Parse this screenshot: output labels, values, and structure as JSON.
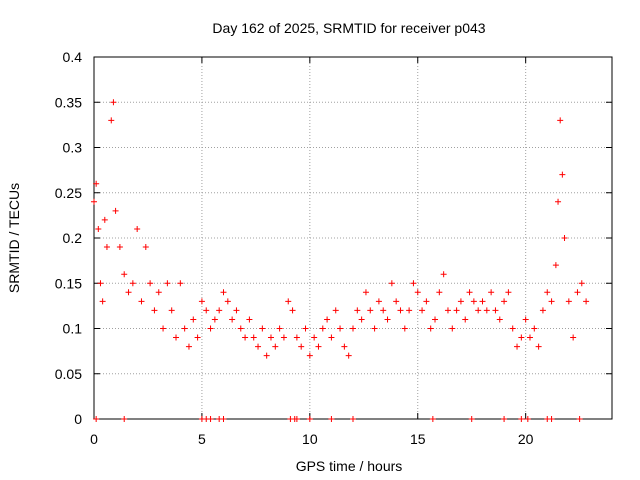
{
  "chart_data": {
    "type": "scatter",
    "title": "Day 162 of 2025, SRMTID for receiver p043",
    "xlabel": "GPS time / hours",
    "ylabel": "SRMTID / TECUs",
    "xlim": [
      0,
      24
    ],
    "ylim": [
      0,
      0.4
    ],
    "xticks": [
      0,
      5,
      10,
      15,
      20
    ],
    "xtick_labels": [
      "0",
      "5",
      "10",
      "15",
      "20"
    ],
    "yticks": [
      0,
      0.05,
      0.1,
      0.15,
      0.2,
      0.25,
      0.3,
      0.35,
      0.4
    ],
    "ytick_labels": [
      "0",
      "0.05",
      "0.1",
      "0.15",
      "0.2",
      "0.25",
      "0.3",
      "0.35",
      "0.4"
    ],
    "grid": true,
    "marker": "+",
    "series": [
      {
        "name": "SRMTID",
        "color": "#ff0000",
        "description": "dense scatter of SRMTID values; main cloud 0.05-0.25 TECU, peaks near 0.36 at ~0.9 h and ~21.6 h",
        "x": [
          0.0,
          0.1,
          0.2,
          0.3,
          0.4,
          0.5,
          0.6,
          0.8,
          0.9,
          1.0,
          1.2,
          1.4,
          1.6,
          1.8,
          2.0,
          2.2,
          2.4,
          2.6,
          2.8,
          3.0,
          3.2,
          3.4,
          3.6,
          3.8,
          4.0,
          4.2,
          4.4,
          4.6,
          4.8,
          5.0,
          5.2,
          5.4,
          5.6,
          5.8,
          6.0,
          6.2,
          6.4,
          6.6,
          6.8,
          7.0,
          7.2,
          7.4,
          7.6,
          7.8,
          8.0,
          8.2,
          8.4,
          8.6,
          8.8,
          9.0,
          9.2,
          9.4,
          9.6,
          9.8,
          10.0,
          10.2,
          10.4,
          10.6,
          10.8,
          11.0,
          11.2,
          11.4,
          11.6,
          11.8,
          12.0,
          12.2,
          12.4,
          12.6,
          12.8,
          13.0,
          13.2,
          13.4,
          13.6,
          13.8,
          14.0,
          14.2,
          14.4,
          14.6,
          14.8,
          15.0,
          15.2,
          15.4,
          15.6,
          15.8,
          16.0,
          16.2,
          16.4,
          16.6,
          16.8,
          17.0,
          17.2,
          17.4,
          17.6,
          17.8,
          18.0,
          18.2,
          18.4,
          18.6,
          18.8,
          19.0,
          19.2,
          19.4,
          19.6,
          19.8,
          20.0,
          20.2,
          20.4,
          20.6,
          20.8,
          21.0,
          21.2,
          21.4,
          21.5,
          21.6,
          21.7,
          21.8,
          22.0,
          22.2,
          22.4,
          22.6,
          22.8
        ],
        "y": [
          0.24,
          0.26,
          0.21,
          0.15,
          0.13,
          0.22,
          0.19,
          0.33,
          0.35,
          0.23,
          0.19,
          0.16,
          0.14,
          0.15,
          0.21,
          0.13,
          0.19,
          0.15,
          0.12,
          0.14,
          0.1,
          0.15,
          0.12,
          0.09,
          0.15,
          0.1,
          0.08,
          0.11,
          0.09,
          0.13,
          0.12,
          0.1,
          0.11,
          0.12,
          0.14,
          0.13,
          0.11,
          0.12,
          0.1,
          0.09,
          0.11,
          0.09,
          0.08,
          0.1,
          0.07,
          0.09,
          0.08,
          0.1,
          0.09,
          0.13,
          0.12,
          0.09,
          0.08,
          0.1,
          0.07,
          0.09,
          0.08,
          0.1,
          0.11,
          0.09,
          0.12,
          0.1,
          0.08,
          0.07,
          0.1,
          0.12,
          0.11,
          0.14,
          0.12,
          0.1,
          0.13,
          0.12,
          0.11,
          0.15,
          0.13,
          0.12,
          0.1,
          0.12,
          0.15,
          0.14,
          0.12,
          0.13,
          0.1,
          0.11,
          0.14,
          0.16,
          0.12,
          0.1,
          0.12,
          0.13,
          0.11,
          0.14,
          0.13,
          0.12,
          0.13,
          0.12,
          0.14,
          0.12,
          0.11,
          0.13,
          0.14,
          0.1,
          0.08,
          0.09,
          0.11,
          0.09,
          0.1,
          0.08,
          0.12,
          0.14,
          0.13,
          0.17,
          0.24,
          0.33,
          0.27,
          0.2,
          0.13,
          0.09,
          0.14,
          0.15,
          0.13
        ]
      }
    ],
    "zero_markers_x": [
      0.1,
      1.4,
      5.0,
      5.2,
      5.4,
      5.8,
      6.0,
      9.1,
      9.3,
      9.4,
      10.0,
      11.0,
      12.0,
      15.7,
      17.5,
      19.0,
      19.8,
      20.1,
      21.0,
      21.2,
      22.5
    ]
  }
}
